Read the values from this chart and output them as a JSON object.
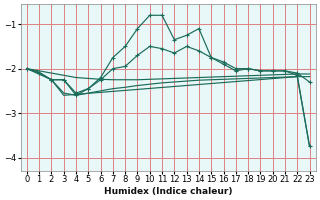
{
  "xlabel": "Humidex (Indice chaleur)",
  "bg_color": "#ffffff",
  "plot_bg_color": "#e8f8f8",
  "grid_color": "#e08080",
  "line_color": "#1a6b5a",
  "xlim": [
    -0.5,
    23.5
  ],
  "ylim": [
    -4.3,
    -0.55
  ],
  "yticks": [
    -4,
    -3,
    -2,
    -1
  ],
  "xticks": [
    0,
    1,
    2,
    3,
    4,
    5,
    6,
    7,
    8,
    9,
    10,
    11,
    12,
    13,
    14,
    15,
    16,
    17,
    18,
    19,
    20,
    21,
    22,
    23
  ],
  "line_spiky_x": [
    2,
    3,
    4,
    5,
    6,
    7,
    8,
    9,
    10,
    11,
    12,
    13,
    14,
    15,
    16,
    17,
    18,
    19,
    20,
    21,
    22,
    23
  ],
  "line_spiky_y": [
    -2.25,
    -2.25,
    -2.6,
    -2.45,
    -2.2,
    -1.75,
    -1.5,
    -1.1,
    -0.8,
    -0.8,
    -1.35,
    -1.25,
    -1.1,
    -1.75,
    -1.9,
    -2.05,
    -2.0,
    -2.05,
    -2.05,
    -2.05,
    -2.15,
    -3.75
  ],
  "line_mid_x": [
    0,
    1,
    2,
    3,
    4,
    5,
    6,
    7,
    8,
    9,
    10,
    11,
    12,
    13,
    14,
    15,
    16,
    17,
    18,
    19,
    20,
    21,
    22,
    23
  ],
  "line_mid_y": [
    -2.0,
    -2.1,
    -2.25,
    -2.25,
    -2.55,
    -2.45,
    -2.25,
    -2.0,
    -1.95,
    -1.7,
    -1.5,
    -1.55,
    -1.65,
    -1.5,
    -1.6,
    -1.75,
    -1.85,
    -2.0,
    -2.0,
    -2.05,
    -2.05,
    -2.05,
    -2.1,
    -2.3
  ],
  "line_flat_top_x": [
    0,
    1,
    2,
    3,
    4,
    5,
    6,
    7,
    8,
    9,
    10,
    11,
    12,
    13,
    14,
    15,
    16,
    17,
    18,
    19,
    20,
    21,
    22,
    23
  ],
  "line_flat_top_y": [
    -2.0,
    -2.05,
    -2.1,
    -2.15,
    -2.2,
    -2.22,
    -2.24,
    -2.25,
    -2.25,
    -2.25,
    -2.24,
    -2.23,
    -2.22,
    -2.21,
    -2.2,
    -2.19,
    -2.18,
    -2.17,
    -2.16,
    -2.15,
    -2.14,
    -2.13,
    -2.12,
    -2.12
  ],
  "line_flat_bot_x": [
    0,
    1,
    2,
    3,
    4,
    5,
    6,
    7,
    8,
    9,
    10,
    11,
    12,
    13,
    14,
    15,
    16,
    17,
    18,
    19,
    20,
    21,
    22,
    23
  ],
  "line_flat_bot_y": [
    -2.0,
    -2.08,
    -2.25,
    -2.55,
    -2.6,
    -2.55,
    -2.5,
    -2.45,
    -2.42,
    -2.38,
    -2.35,
    -2.32,
    -2.3,
    -2.28,
    -2.26,
    -2.25,
    -2.24,
    -2.23,
    -2.22,
    -2.21,
    -2.2,
    -2.19,
    -2.18,
    -2.18
  ],
  "line_diag_x": [
    0,
    2,
    3,
    22,
    23
  ],
  "line_diag_y": [
    -2.0,
    -2.25,
    -2.6,
    -2.18,
    -3.75
  ]
}
